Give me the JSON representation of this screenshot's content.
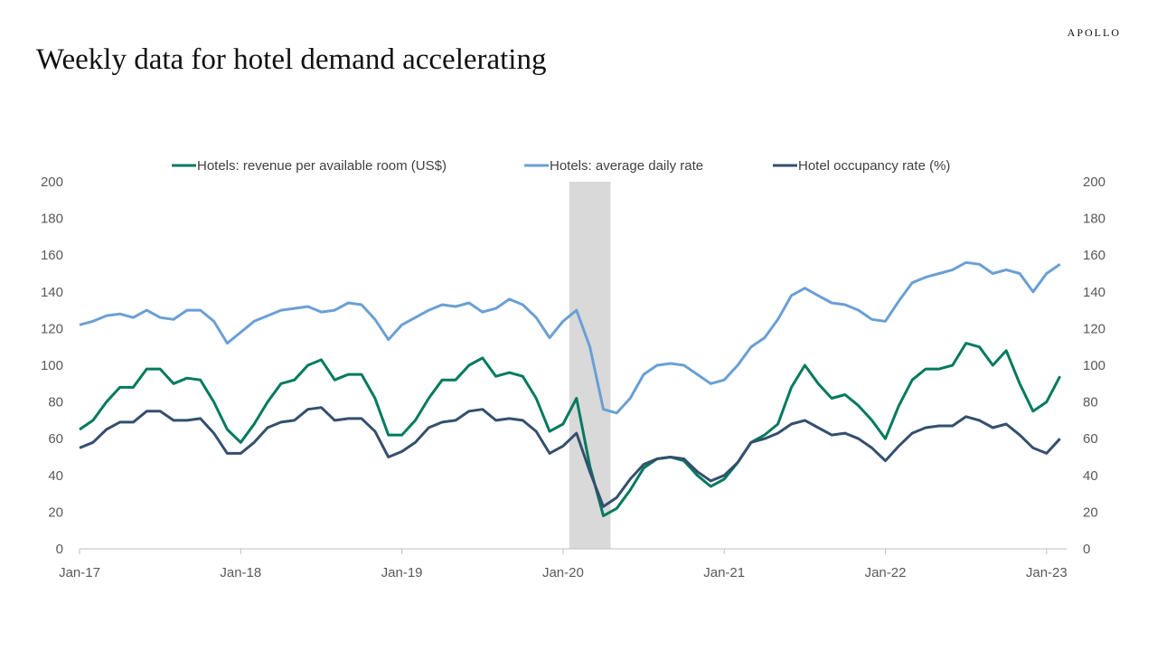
{
  "header": {
    "title": "Weekly data for hotel demand accelerating",
    "brand": "APOLLO"
  },
  "chart_data": {
    "type": "line",
    "title": "Weekly data for hotel demand accelerating",
    "xlabel": "",
    "ylabel": "",
    "ylim": [
      0,
      200
    ],
    "y_ticks": [
      "0",
      "20",
      "40",
      "60",
      "80",
      "100",
      "120",
      "140",
      "160",
      "180",
      "200"
    ],
    "y2_ticks": [
      "0",
      "20",
      "40",
      "60",
      "80",
      "100",
      "120",
      "140",
      "160",
      "180",
      "200"
    ],
    "x_ticks": [
      "Jan-17",
      "Jan-18",
      "Jan-19",
      "Jan-20",
      "Jan-21",
      "Jan-22",
      "Jan-23"
    ],
    "grid": false,
    "legend": "top",
    "shaded_period": {
      "start": "2020-02",
      "end": "2020-04",
      "color": "#D9D9D9"
    },
    "x": [
      "2017-01",
      "2017-02",
      "2017-03",
      "2017-04",
      "2017-05",
      "2017-06",
      "2017-07",
      "2017-08",
      "2017-09",
      "2017-10",
      "2017-11",
      "2017-12",
      "2018-01",
      "2018-02",
      "2018-03",
      "2018-04",
      "2018-05",
      "2018-06",
      "2018-07",
      "2018-08",
      "2018-09",
      "2018-10",
      "2018-11",
      "2018-12",
      "2019-01",
      "2019-02",
      "2019-03",
      "2019-04",
      "2019-05",
      "2019-06",
      "2019-07",
      "2019-08",
      "2019-09",
      "2019-10",
      "2019-11",
      "2019-12",
      "2020-01",
      "2020-02",
      "2020-03",
      "2020-04",
      "2020-05",
      "2020-06",
      "2020-07",
      "2020-08",
      "2020-09",
      "2020-10",
      "2020-11",
      "2020-12",
      "2021-01",
      "2021-02",
      "2021-03",
      "2021-04",
      "2021-05",
      "2021-06",
      "2021-07",
      "2021-08",
      "2021-09",
      "2021-10",
      "2021-11",
      "2021-12",
      "2022-01",
      "2022-02",
      "2022-03",
      "2022-04",
      "2022-05",
      "2022-06",
      "2022-07",
      "2022-08",
      "2022-09",
      "2022-10",
      "2022-11",
      "2022-12",
      "2023-01",
      "2023-02"
    ],
    "series": [
      {
        "name": "Hotels: revenue per available room (US$)",
        "color": "#007A5E",
        "values": [
          65,
          70,
          80,
          88,
          88,
          98,
          98,
          90,
          93,
          92,
          80,
          65,
          58,
          68,
          80,
          90,
          92,
          100,
          103,
          92,
          95,
          95,
          82,
          62,
          62,
          70,
          82,
          92,
          92,
          100,
          104,
          94,
          96,
          94,
          82,
          64,
          68,
          82,
          45,
          18,
          22,
          32,
          44,
          49,
          50,
          48,
          40,
          34,
          38,
          47,
          58,
          62,
          68,
          88,
          100,
          90,
          82,
          84,
          78,
          70,
          60,
          78,
          92,
          98,
          98,
          100,
          112,
          110,
          100,
          108,
          90,
          75,
          80,
          94
        ]
      },
      {
        "name": "Hotels: average daily rate",
        "color": "#6A9FD4",
        "values": [
          122,
          124,
          127,
          128,
          126,
          130,
          126,
          125,
          130,
          130,
          124,
          112,
          118,
          124,
          127,
          130,
          131,
          132,
          129,
          130,
          134,
          133,
          125,
          114,
          122,
          126,
          130,
          133,
          132,
          134,
          129,
          131,
          136,
          133,
          126,
          115,
          124,
          130,
          110,
          76,
          74,
          82,
          95,
          100,
          101,
          100,
          95,
          90,
          92,
          100,
          110,
          115,
          125,
          138,
          142,
          138,
          134,
          133,
          130,
          125,
          124,
          135,
          145,
          148,
          150,
          152,
          156,
          155,
          150,
          152,
          150,
          140,
          150,
          155
        ]
      },
      {
        "name": "Hotel occupancy rate (%)",
        "color": "#344F6E",
        "values": [
          55,
          58,
          65,
          69,
          69,
          75,
          75,
          70,
          70,
          71,
          63,
          52,
          52,
          58,
          66,
          69,
          70,
          76,
          77,
          70,
          71,
          71,
          64,
          50,
          53,
          58,
          66,
          69,
          70,
          75,
          76,
          70,
          71,
          70,
          64,
          52,
          56,
          63,
          42,
          23,
          28,
          38,
          46,
          49,
          50,
          49,
          42,
          37,
          40,
          47,
          58,
          60,
          63,
          68,
          70,
          66,
          62,
          63,
          60,
          55,
          48,
          56,
          63,
          66,
          67,
          67,
          72,
          70,
          66,
          68,
          62,
          55,
          52,
          60
        ]
      }
    ]
  }
}
